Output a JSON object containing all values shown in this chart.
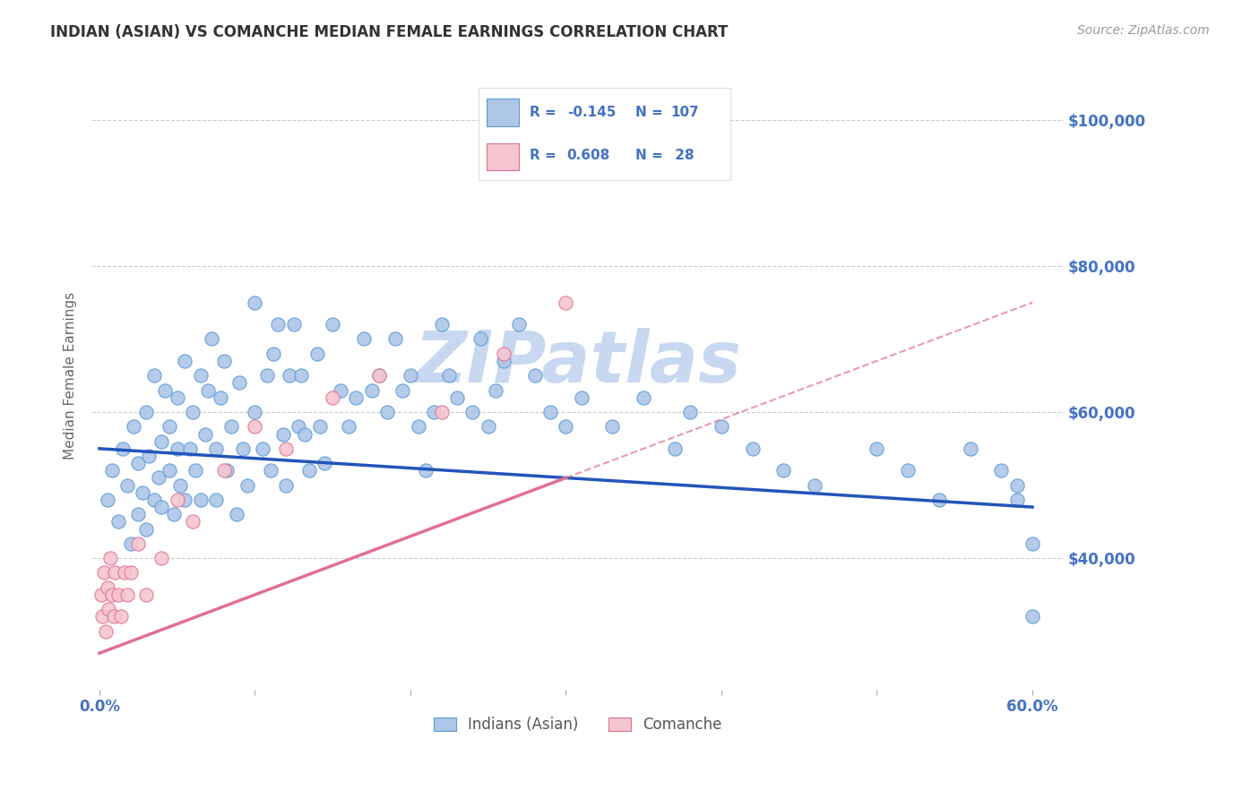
{
  "title": "INDIAN (ASIAN) VS COMANCHE MEDIAN FEMALE EARNINGS CORRELATION CHART",
  "source": "Source: ZipAtlas.com",
  "ylabel": "Median Female Earnings",
  "xlim": [
    -0.005,
    0.62
  ],
  "ylim": [
    22000,
    108000
  ],
  "yticks": [
    40000,
    60000,
    80000,
    100000
  ],
  "ytick_labels": [
    "$40,000",
    "$60,000",
    "$80,000",
    "$100,000"
  ],
  "background_color": "#ffffff",
  "grid_color": "#cccccc",
  "title_color": "#333333",
  "right_label_color": "#4472c4",
  "watermark_text": "ZIPatlas",
  "watermark_color": "#c8d8f0",
  "legend_r1": "-0.145",
  "legend_n1": "107",
  "legend_r2": "0.608",
  "legend_n2": "28",
  "blue_color": "#aec6e8",
  "blue_edge_color": "#5b9bd5",
  "pink_color": "#f5c6d0",
  "pink_edge_color": "#e07090",
  "blue_line_color": "#2255bb",
  "pink_line_color": "#e07090",
  "blue_scatter_x": [
    0.005,
    0.008,
    0.012,
    0.015,
    0.018,
    0.02,
    0.022,
    0.025,
    0.025,
    0.028,
    0.03,
    0.03,
    0.032,
    0.035,
    0.035,
    0.038,
    0.04,
    0.04,
    0.042,
    0.045,
    0.045,
    0.048,
    0.05,
    0.05,
    0.052,
    0.055,
    0.055,
    0.058,
    0.06,
    0.062,
    0.065,
    0.065,
    0.068,
    0.07,
    0.072,
    0.075,
    0.075,
    0.078,
    0.08,
    0.082,
    0.085,
    0.088,
    0.09,
    0.092,
    0.095,
    0.1,
    0.1,
    0.105,
    0.108,
    0.11,
    0.112,
    0.115,
    0.118,
    0.12,
    0.122,
    0.125,
    0.128,
    0.13,
    0.132,
    0.135,
    0.14,
    0.142,
    0.145,
    0.15,
    0.155,
    0.16,
    0.165,
    0.17,
    0.175,
    0.18,
    0.185,
    0.19,
    0.195,
    0.2,
    0.205,
    0.21,
    0.215,
    0.22,
    0.225,
    0.23,
    0.24,
    0.245,
    0.25,
    0.255,
    0.26,
    0.27,
    0.28,
    0.29,
    0.3,
    0.31,
    0.33,
    0.35,
    0.37,
    0.38,
    0.4,
    0.42,
    0.44,
    0.46,
    0.5,
    0.52,
    0.54,
    0.56,
    0.58,
    0.59,
    0.59,
    0.6,
    0.6
  ],
  "blue_scatter_y": [
    48000,
    52000,
    45000,
    55000,
    50000,
    42000,
    58000,
    46000,
    53000,
    49000,
    44000,
    60000,
    54000,
    48000,
    65000,
    51000,
    56000,
    47000,
    63000,
    52000,
    58000,
    46000,
    62000,
    55000,
    50000,
    67000,
    48000,
    55000,
    60000,
    52000,
    65000,
    48000,
    57000,
    63000,
    70000,
    55000,
    48000,
    62000,
    67000,
    52000,
    58000,
    46000,
    64000,
    55000,
    50000,
    60000,
    75000,
    55000,
    65000,
    52000,
    68000,
    72000,
    57000,
    50000,
    65000,
    72000,
    58000,
    65000,
    57000,
    52000,
    68000,
    58000,
    53000,
    72000,
    63000,
    58000,
    62000,
    70000,
    63000,
    65000,
    60000,
    70000,
    63000,
    65000,
    58000,
    52000,
    60000,
    72000,
    65000,
    62000,
    60000,
    70000,
    58000,
    63000,
    67000,
    72000,
    65000,
    60000,
    58000,
    62000,
    58000,
    62000,
    55000,
    60000,
    58000,
    55000,
    52000,
    50000,
    55000,
    52000,
    48000,
    55000,
    52000,
    48000,
    50000,
    42000,
    32000
  ],
  "pink_scatter_x": [
    0.001,
    0.002,
    0.003,
    0.004,
    0.005,
    0.006,
    0.007,
    0.008,
    0.009,
    0.01,
    0.012,
    0.014,
    0.016,
    0.018,
    0.02,
    0.025,
    0.03,
    0.04,
    0.05,
    0.06,
    0.08,
    0.1,
    0.12,
    0.15,
    0.18,
    0.22,
    0.26,
    0.3
  ],
  "pink_scatter_y": [
    35000,
    32000,
    38000,
    30000,
    36000,
    33000,
    40000,
    35000,
    32000,
    38000,
    35000,
    32000,
    38000,
    35000,
    38000,
    42000,
    35000,
    40000,
    48000,
    45000,
    52000,
    58000,
    55000,
    62000,
    65000,
    60000,
    68000,
    75000
  ],
  "blue_trend_x": [
    0.0,
    0.6
  ],
  "blue_trend_y": [
    55000,
    47000
  ],
  "pink_trend_x": [
    0.0,
    0.6
  ],
  "pink_trend_y": [
    27000,
    75000
  ]
}
